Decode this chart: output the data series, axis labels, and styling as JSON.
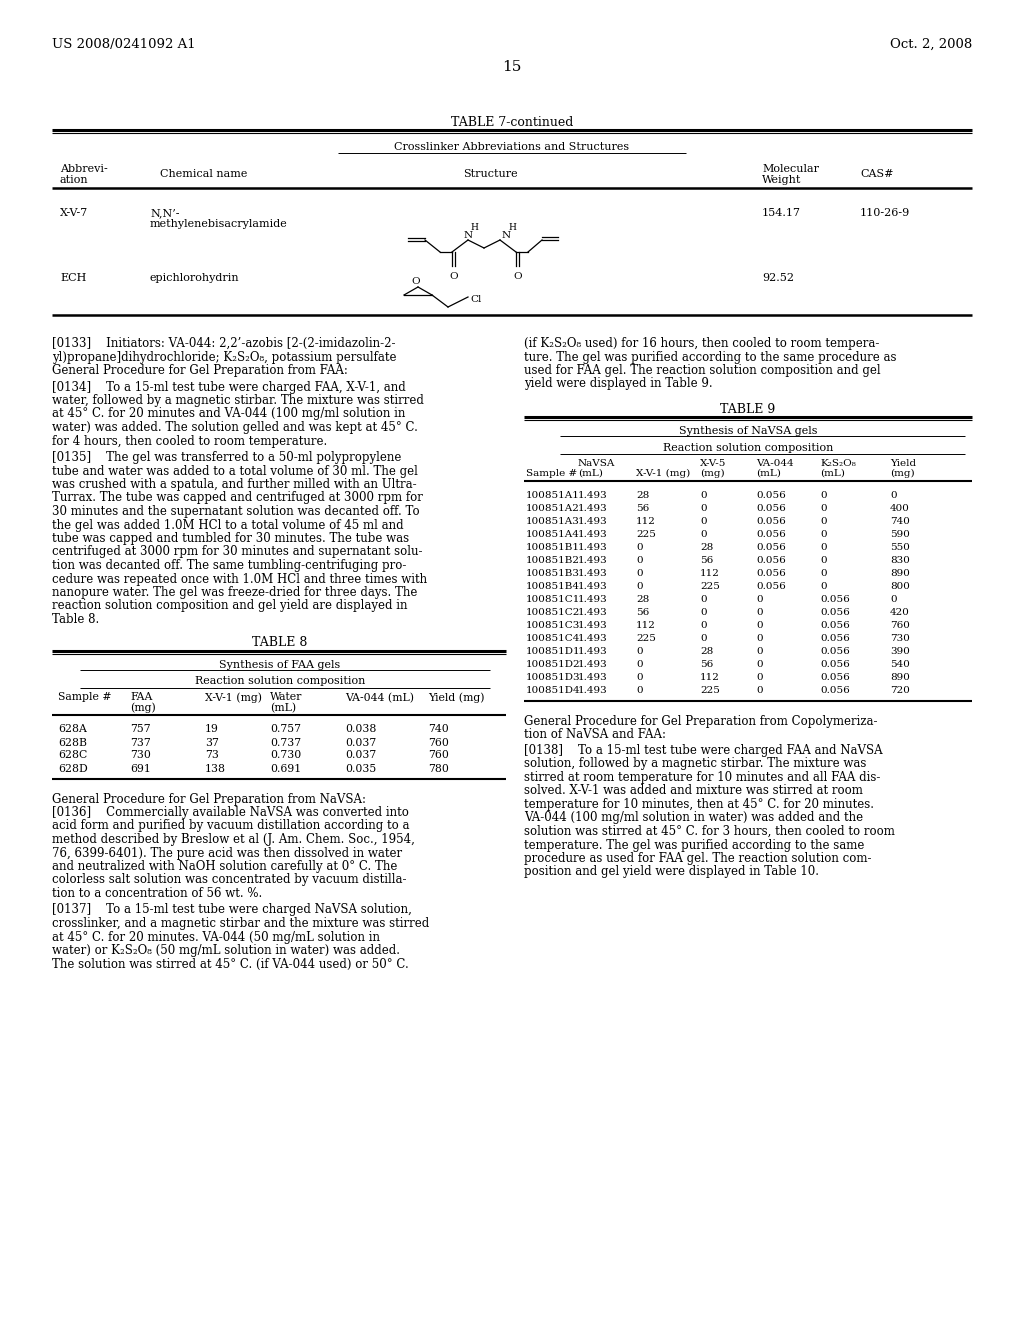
{
  "page_number": "15",
  "patent_left": "US 2008/0241092 A1",
  "patent_right": "Oct. 2, 2008",
  "background_color": "#ffffff",
  "table7_title": "TABLE 7-continued",
  "table7_subtitle": "Crosslinker Abbreviations and Structures",
  "table8_title": "TABLE 8",
  "table8_subtitle": "Synthesis of FAA gels",
  "table8_sub2": "Reaction solution composition",
  "table8_rows": [
    [
      "628A",
      "757",
      "19",
      "0.757",
      "0.038",
      "740"
    ],
    [
      "628B",
      "737",
      "37",
      "0.737",
      "0.037",
      "760"
    ],
    [
      "628C",
      "730",
      "73",
      "0.730",
      "0.037",
      "760"
    ],
    [
      "628D",
      "691",
      "138",
      "0.691",
      "0.035",
      "780"
    ]
  ],
  "table9_title": "TABLE 9",
  "table9_subtitle": "Synthesis of NaVSA gels",
  "table9_sub2": "Reaction solution composition",
  "table9_rows": [
    [
      "100851A1",
      "1.493",
      "28",
      "0",
      "0.056",
      "0",
      "0"
    ],
    [
      "100851A2",
      "1.493",
      "56",
      "0",
      "0.056",
      "0",
      "400"
    ],
    [
      "100851A3",
      "1.493",
      "112",
      "0",
      "0.056",
      "0",
      "740"
    ],
    [
      "100851A4",
      "1.493",
      "225",
      "0",
      "0.056",
      "0",
      "590"
    ],
    [
      "100851B1",
      "1.493",
      "0",
      "28",
      "0.056",
      "0",
      "550"
    ],
    [
      "100851B2",
      "1.493",
      "0",
      "56",
      "0.056",
      "0",
      "830"
    ],
    [
      "100851B3",
      "1.493",
      "0",
      "112",
      "0.056",
      "0",
      "890"
    ],
    [
      "100851B4",
      "1.493",
      "0",
      "225",
      "0.056",
      "0",
      "800"
    ],
    [
      "100851C1",
      "1.493",
      "28",
      "0",
      "0",
      "0.056",
      "0"
    ],
    [
      "100851C2",
      "1.493",
      "56",
      "0",
      "0",
      "0.056",
      "420"
    ],
    [
      "100851C3",
      "1.493",
      "112",
      "0",
      "0",
      "0.056",
      "760"
    ],
    [
      "100851C4",
      "1.493",
      "225",
      "0",
      "0",
      "0.056",
      "730"
    ],
    [
      "100851D1",
      "1.493",
      "0",
      "28",
      "0",
      "0.056",
      "390"
    ],
    [
      "100851D2",
      "1.493",
      "0",
      "56",
      "0",
      "0.056",
      "540"
    ],
    [
      "100851D3",
      "1.493",
      "0",
      "112",
      "0",
      "0.056",
      "890"
    ],
    [
      "100851D4",
      "1.493",
      "0",
      "225",
      "0",
      "0.056",
      "720"
    ]
  ],
  "para133_lines": [
    "[0133]    Initiators: VA-044: 2,2’-azobis [2-(2-imidazolin-2-",
    "yl)propane]dihydrochloride; K₂S₂O₈, potassium persulfate",
    "General Procedure for Gel Preparation from FAA:"
  ],
  "para134_lines": [
    "[0134]    To a 15-ml test tube were charged FAA, X-V-1, and",
    "water, followed by a magnetic stirbar. The mixture was stirred",
    "at 45° C. for 20 minutes and VA-044 (100 mg/ml solution in",
    "water) was added. The solution gelled and was kept at 45° C.",
    "for 4 hours, then cooled to room temperature."
  ],
  "para135_lines": [
    "[0135]    The gel was transferred to a 50-ml polypropylene",
    "tube and water was added to a total volume of 30 ml. The gel",
    "was crushed with a spatula, and further milled with an Ultra-",
    "Turrax. The tube was capped and centrifuged at 3000 rpm for",
    "30 minutes and the supernatant solution was decanted off. To",
    "the gel was added 1.0M HCl to a total volume of 45 ml and",
    "tube was capped and tumbled for 30 minutes. The tube was",
    "centrifuged at 3000 rpm for 30 minutes and supernatant solu-",
    "tion was decanted off. The same tumbling-centrifuging pro-",
    "cedure was repeated once with 1.0M HCl and three times with",
    "nanopure water. The gel was freeze-dried for three days. The",
    "reaction solution composition and gel yield are displayed in",
    "Table 8."
  ],
  "right_top_lines": [
    "(if K₂S₂O₈ used) for 16 hours, then cooled to room tempera-",
    "ture. The gel was purified according to the same procedure as",
    "used for FAA gel. The reaction solution composition and gel",
    "yield were displayed in Table 9."
  ],
  "para136_title": "General Procedure for Gel Preparation from NaVSA:",
  "para136_lines": [
    "[0136]    Commercially available NaVSA was converted into",
    "acid form and purified by vacuum distillation according to a",
    "method described by Breslow et al (J. Am. Chem. Soc., 1954,",
    "76, 6399-6401). The pure acid was then dissolved in water",
    "and neutralized with NaOH solution carefully at 0° C. The",
    "colorless salt solution was concentrated by vacuum distilla-",
    "tion to a concentration of 56 wt. %."
  ],
  "para137_lines": [
    "[0137]    To a 15-ml test tube were charged NaVSA solution,",
    "crosslinker, and a magnetic stirbar and the mixture was stirred",
    "at 45° C. for 20 minutes. VA-044 (50 mg/mL solution in",
    "water) or K₂S₂O₈ (50 mg/mL solution in water) was added.",
    "The solution was stirred at 45° C. (if VA-044 used) or 50° C."
  ],
  "para138_title": "General Procedure for Gel Preparation from Copolymeriza-",
  "para138_title2": "tion of NaVSA and FAA:",
  "para138_lines": [
    "[0138]    To a 15-ml test tube were charged FAA and NaVSA",
    "solution, followed by a magnetic stirbar. The mixture was",
    "stirred at room temperature for 10 minutes and all FAA dis-",
    "solved. X-V-1 was added and mixture was stirred at room",
    "temperature for 10 minutes, then at 45° C. for 20 minutes.",
    "VA-044 (100 mg/ml solution in water) was added and the",
    "solution was stirred at 45° C. for 3 hours, then cooled to room",
    "temperature. The gel was purified according to the same",
    "procedure as used for FAA gel. The reaction solution com-",
    "position and gel yield were displayed in Table 10."
  ]
}
